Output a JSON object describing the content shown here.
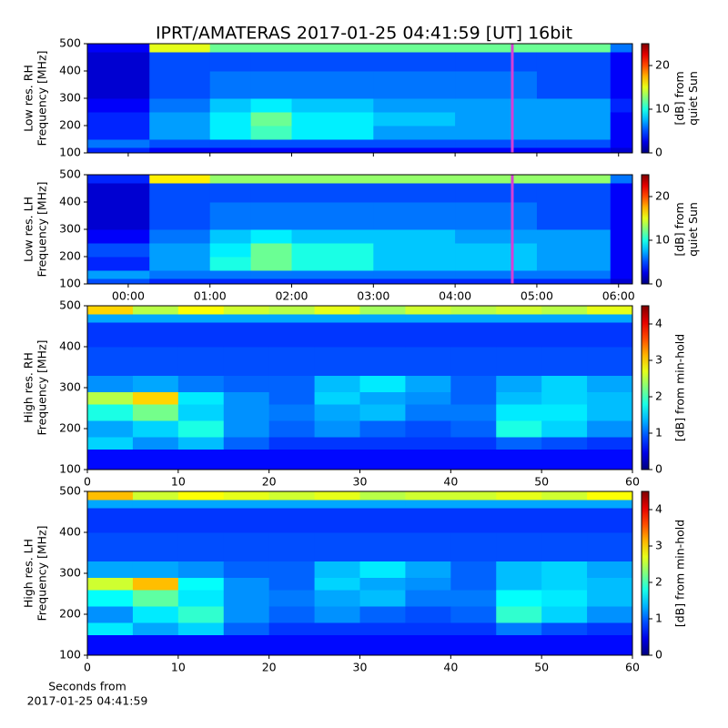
{
  "title": "IPRT/AMATERAS 2017-01-25 04:41:59 [UT]   16bit",
  "chart_data": [
    {
      "type": "heatmap",
      "ylabel": [
        "Low res. RH",
        "Frequency [MHz]"
      ],
      "xlim": [
        -0.5,
        6.17
      ],
      "xticks": [
        0,
        1,
        2,
        3,
        4,
        5,
        6
      ],
      "ylim": [
        100,
        500
      ],
      "yticks": [
        100,
        200,
        300,
        400,
        500
      ],
      "x_bins": [
        -0.5,
        0.26,
        1,
        1.5,
        2,
        3,
        4,
        5,
        5.9,
        6.17
      ],
      "y_bins": [
        100,
        120,
        150,
        200,
        250,
        300,
        400,
        470,
        500
      ],
      "z": [
        [
          4,
          3,
          3,
          3,
          3,
          3,
          3,
          3,
          2
        ],
        [
          6,
          5,
          5,
          5,
          5,
          5,
          5,
          5,
          3
        ],
        [
          4,
          7,
          9,
          11,
          9,
          7,
          7,
          7,
          3
        ],
        [
          4,
          7,
          9,
          12,
          9,
          8,
          7,
          7,
          3
        ],
        [
          3,
          6,
          8,
          9,
          8,
          7,
          7,
          7,
          4
        ],
        [
          2,
          5,
          6,
          6,
          6,
          6,
          6,
          5,
          3
        ],
        [
          2,
          5,
          5,
          5,
          5,
          5,
          5,
          5,
          3
        ],
        [
          3,
          15,
          12,
          12,
          12,
          12,
          12,
          12,
          6
        ]
      ],
      "zlim": [
        0,
        25
      ],
      "zticks": [
        0,
        10,
        20
      ],
      "colorbar_label": [
        "[dB] from",
        "quiet Sun"
      ],
      "marker": {
        "x": 4.7,
        "color": "#d63fd6"
      }
    },
    {
      "type": "heatmap",
      "ylabel": [
        "Low res. LH",
        "Frequency [MHz]"
      ],
      "xlim": [
        -0.5,
        6.17
      ],
      "xticks": [
        {
          "value": 0,
          "label": "00:00"
        },
        {
          "value": 1,
          "label": "01:00"
        },
        {
          "value": 2,
          "label": "02:00"
        },
        {
          "value": 3,
          "label": "03:00"
        },
        {
          "value": 4,
          "label": "04:00"
        },
        {
          "value": 5,
          "label": "05:00"
        },
        {
          "value": 6,
          "label": "06:00"
        }
      ],
      "ylim": [
        100,
        500
      ],
      "yticks": [
        100,
        200,
        300,
        400,
        500
      ],
      "x_bins": [
        -0.5,
        0.26,
        1,
        1.5,
        2,
        3,
        4,
        5,
        5.9,
        6.17
      ],
      "y_bins": [
        100,
        120,
        150,
        200,
        250,
        300,
        400,
        470,
        500
      ],
      "z": [
        [
          5,
          4,
          4,
          4,
          4,
          4,
          4,
          4,
          2
        ],
        [
          7,
          6,
          6,
          6,
          6,
          6,
          6,
          6,
          3
        ],
        [
          4,
          7,
          10,
          12,
          10,
          8,
          8,
          7,
          3
        ],
        [
          5,
          7,
          9,
          12,
          10,
          8,
          8,
          7,
          3
        ],
        [
          3,
          6,
          8,
          9,
          8,
          8,
          7,
          7,
          3
        ],
        [
          2,
          5,
          6,
          6,
          6,
          6,
          6,
          5,
          3
        ],
        [
          2,
          5,
          5,
          5,
          5,
          5,
          5,
          5,
          3
        ],
        [
          4,
          16,
          13,
          13,
          13,
          13,
          13,
          13,
          6
        ]
      ],
      "zlim": [
        0,
        25
      ],
      "zticks": [
        0,
        10,
        20
      ],
      "colorbar_label": [
        "[dB] from",
        "quiet Sun"
      ],
      "marker": {
        "x": 4.7,
        "color": "#d63fd6"
      }
    },
    {
      "type": "heatmap",
      "ylabel": [
        "High res. RH",
        "Frequency [MHz]"
      ],
      "xlim": [
        0,
        60
      ],
      "xticks": [
        0,
        10,
        20,
        30,
        40,
        50,
        60
      ],
      "ylim": [
        100,
        500
      ],
      "yticks": [
        100,
        200,
        300,
        400,
        500
      ],
      "x_bins": [
        0,
        5,
        10,
        15,
        20,
        25,
        30,
        35,
        40,
        45,
        50,
        55,
        60
      ],
      "y_bins": [
        100,
        150,
        180,
        220,
        260,
        290,
        330,
        400,
        460,
        480,
        500
      ],
      "z": [
        [
          0.6,
          0.6,
          0.6,
          0.6,
          0.6,
          0.6,
          0.6,
          0.6,
          0.6,
          0.6,
          0.6,
          0.6
        ],
        [
          1.5,
          1.2,
          1.4,
          1.0,
          0.8,
          0.8,
          0.8,
          0.8,
          0.8,
          1.0,
          0.9,
          0.8
        ],
        [
          1.3,
          1.5,
          1.8,
          1.2,
          1.0,
          1.2,
          1.0,
          0.9,
          1.0,
          1.8,
          1.5,
          1.2
        ],
        [
          1.8,
          2.2,
          1.5,
          1.2,
          1.1,
          1.3,
          1.4,
          1.1,
          1.1,
          1.6,
          1.6,
          1.4
        ],
        [
          2.5,
          3.0,
          1.6,
          1.2,
          1.0,
          1.5,
          1.3,
          1.2,
          1.0,
          1.4,
          1.5,
          1.4
        ],
        [
          1.2,
          1.3,
          1.1,
          1.0,
          1.0,
          1.4,
          1.6,
          1.3,
          1.0,
          1.3,
          1.5,
          1.3
        ],
        [
          0.9,
          0.9,
          0.9,
          0.9,
          0.9,
          0.9,
          0.9,
          0.9,
          0.9,
          0.9,
          0.9,
          0.9
        ],
        [
          0.8,
          0.8,
          0.8,
          0.8,
          0.8,
          0.8,
          0.8,
          0.8,
          0.8,
          0.8,
          0.8,
          0.8
        ],
        [
          1.3,
          1.3,
          1.3,
          1.3,
          1.3,
          1.3,
          1.3,
          1.3,
          1.3,
          1.3,
          1.3,
          1.3
        ],
        [
          3.0,
          2.5,
          2.8,
          2.6,
          2.5,
          2.7,
          2.4,
          2.6,
          2.5,
          2.6,
          2.5,
          2.7
        ]
      ],
      "zlim": [
        0,
        4.5
      ],
      "zticks": [
        0,
        1,
        2,
        3,
        4
      ],
      "colorbar_label": [
        "[dB] from min-hold"
      ]
    },
    {
      "type": "heatmap",
      "ylabel": [
        "High res. LH",
        "Frequency [MHz]"
      ],
      "xlim": [
        0,
        60
      ],
      "xticks": [
        0,
        10,
        20,
        30,
        40,
        50,
        60
      ],
      "ylim": [
        100,
        500
      ],
      "yticks": [
        100,
        200,
        300,
        400,
        500
      ],
      "x_bins": [
        0,
        5,
        10,
        15,
        20,
        25,
        30,
        35,
        40,
        45,
        50,
        55,
        60
      ],
      "y_bins": [
        100,
        150,
        180,
        220,
        260,
        290,
        330,
        400,
        460,
        480,
        500
      ],
      "z": [
        [
          0.6,
          0.6,
          0.6,
          0.6,
          0.6,
          0.6,
          0.6,
          0.6,
          0.6,
          0.6,
          0.6,
          0.6
        ],
        [
          1.6,
          1.3,
          1.5,
          1.0,
          0.8,
          0.8,
          0.8,
          0.8,
          0.8,
          1.1,
          0.9,
          0.8
        ],
        [
          1.2,
          1.6,
          1.9,
          1.2,
          1.0,
          1.2,
          1.0,
          0.9,
          1.0,
          1.9,
          1.5,
          1.2
        ],
        [
          1.7,
          2.1,
          1.6,
          1.2,
          1.1,
          1.3,
          1.4,
          1.1,
          1.1,
          1.7,
          1.6,
          1.4
        ],
        [
          2.6,
          3.1,
          1.7,
          1.2,
          1.0,
          1.5,
          1.3,
          1.2,
          1.0,
          1.4,
          1.5,
          1.4
        ],
        [
          1.3,
          1.3,
          1.2,
          1.0,
          1.0,
          1.4,
          1.6,
          1.3,
          1.0,
          1.4,
          1.5,
          1.3
        ],
        [
          0.9,
          0.9,
          0.9,
          0.9,
          0.9,
          0.9,
          0.9,
          0.9,
          0.9,
          0.9,
          0.9,
          0.9
        ],
        [
          0.8,
          0.8,
          0.8,
          0.8,
          0.8,
          0.8,
          0.8,
          0.8,
          0.8,
          0.8,
          0.8,
          0.8
        ],
        [
          1.3,
          1.3,
          1.3,
          1.3,
          1.3,
          1.3,
          1.3,
          1.3,
          1.3,
          1.3,
          1.3,
          1.3
        ],
        [
          3.1,
          2.6,
          2.8,
          2.7,
          2.6,
          2.7,
          2.5,
          2.6,
          2.6,
          2.7,
          2.6,
          2.8
        ]
      ],
      "zlim": [
        0,
        4.5
      ],
      "zticks": [
        0,
        1,
        2,
        3,
        4
      ],
      "colorbar_label": [
        "[dB] from min-hold"
      ],
      "xlabel": [
        "Seconds from",
        "2017-01-25 04:41:59"
      ]
    }
  ]
}
